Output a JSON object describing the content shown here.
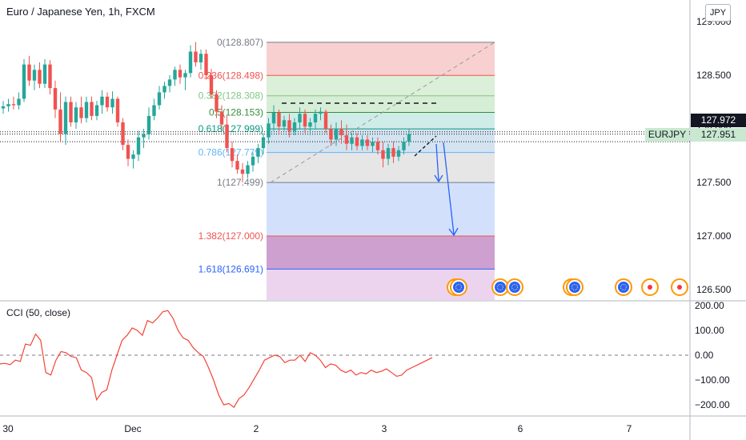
{
  "header": {
    "title": "Euro / Japanese Yen, 1h, FXCM"
  },
  "currency_badge": "JPY",
  "cci_title": "CCI (50, close)",
  "price_tags": {
    "last": "127.972",
    "symbol": "EURJPY",
    "symbol_price": "127.951"
  },
  "colors": {
    "up": "#26a69a",
    "down": "#ef5350",
    "cci": "#f44336",
    "fib_red": "#ef5350",
    "fib_green": "#388e3c",
    "fib_teal": "#089981",
    "fib_blue": "#2962ff",
    "arrow": "#2962ff"
  },
  "chart_data": [
    {
      "type": "candlestick",
      "title": "Euro / Japanese Yen, 1h, FXCM",
      "y_axis": {
        "ticks": [
          "129.000",
          "128.500",
          "128.000",
          "127.500",
          "127.000",
          "126.500"
        ],
        "ylim": [
          126.45,
          129.1
        ],
        "position": "right"
      },
      "x_axis": {
        "ticks": [
          "30",
          "Dec",
          "2",
          "3",
          "6",
          "7"
        ]
      },
      "fibonacci": [
        {
          "level": "0",
          "price": "128.807",
          "label": "0(128.807)",
          "color": "#787b86",
          "fill": "#f8d0d0"
        },
        {
          "level": "0.236",
          "price": "128.498",
          "label": "0.236(128.498)",
          "color": "#ef5350",
          "fill": "#dcefd9"
        },
        {
          "level": "0.382",
          "price": "128.308",
          "label": "0.382(128.308)",
          "color": "#81c784",
          "fill": "#d6eed5"
        },
        {
          "level": "0.5",
          "price": "128.153",
          "label": "0.5(128.153)",
          "color": "#388e3c",
          "fill": "#cfece9"
        },
        {
          "level": "0.618",
          "price": "127.999",
          "label": "0.618(127.999)",
          "color": "#089981",
          "fill": "#d3e3ef"
        },
        {
          "level": "0.786",
          "price": "127.779",
          "label": "0.786(127.779)",
          "color": "#64b5f6",
          "fill": "#e6e6e6"
        },
        {
          "level": "1",
          "price": "127.499",
          "label": "1(127.499)",
          "color": "#787b86",
          "fill": "#d2e0fc"
        },
        {
          "level": "1.382",
          "price": "127.000",
          "label": "1.382(127.000)",
          "color": "#ef5350",
          "fill": "#cea0d0"
        },
        {
          "level": "1.618",
          "price": "126.691",
          "label": "1.618(126.691)",
          "color": "#2962ff",
          "fill": "#ecd4ee"
        }
      ],
      "candles": [
        {
          "o": 128.19,
          "h": 128.26,
          "l": 128.14,
          "c": 128.21
        },
        {
          "o": 128.21,
          "h": 128.28,
          "l": 128.16,
          "c": 128.23
        },
        {
          "o": 128.23,
          "h": 128.3,
          "l": 128.18,
          "c": 128.22
        },
        {
          "o": 128.22,
          "h": 128.34,
          "l": 128.18,
          "c": 128.28
        },
        {
          "o": 128.28,
          "h": 128.65,
          "l": 128.25,
          "c": 128.6
        },
        {
          "o": 128.6,
          "h": 128.68,
          "l": 128.4,
          "c": 128.45
        },
        {
          "o": 128.45,
          "h": 128.6,
          "l": 128.36,
          "c": 128.55
        },
        {
          "o": 128.55,
          "h": 128.62,
          "l": 128.38,
          "c": 128.42
        },
        {
          "o": 128.42,
          "h": 128.65,
          "l": 128.38,
          "c": 128.6
        },
        {
          "o": 128.6,
          "h": 128.64,
          "l": 128.32,
          "c": 128.38
        },
        {
          "o": 128.38,
          "h": 128.45,
          "l": 128.1,
          "c": 128.18
        },
        {
          "o": 128.18,
          "h": 128.34,
          "l": 127.88,
          "c": 127.95
        },
        {
          "o": 127.95,
          "h": 128.3,
          "l": 127.85,
          "c": 128.25
        },
        {
          "o": 128.25,
          "h": 128.3,
          "l": 128.02,
          "c": 128.06
        },
        {
          "o": 128.06,
          "h": 128.25,
          "l": 128.0,
          "c": 128.2
        },
        {
          "o": 128.2,
          "h": 128.3,
          "l": 128.05,
          "c": 128.1
        },
        {
          "o": 128.1,
          "h": 128.3,
          "l": 128.06,
          "c": 128.25
        },
        {
          "o": 128.25,
          "h": 128.3,
          "l": 128.08,
          "c": 128.12
        },
        {
          "o": 128.12,
          "h": 128.26,
          "l": 128.08,
          "c": 128.22
        },
        {
          "o": 128.22,
          "h": 128.36,
          "l": 128.14,
          "c": 128.3
        },
        {
          "o": 128.3,
          "h": 128.34,
          "l": 128.16,
          "c": 128.2
        },
        {
          "o": 128.2,
          "h": 128.35,
          "l": 128.14,
          "c": 128.28
        },
        {
          "o": 128.28,
          "h": 128.3,
          "l": 128.02,
          "c": 128.06
        },
        {
          "o": 128.06,
          "h": 128.1,
          "l": 127.8,
          "c": 127.85
        },
        {
          "o": 127.85,
          "h": 127.9,
          "l": 127.65,
          "c": 127.72
        },
        {
          "o": 127.72,
          "h": 127.8,
          "l": 127.63,
          "c": 127.76
        },
        {
          "o": 127.76,
          "h": 127.98,
          "l": 127.7,
          "c": 127.92
        },
        {
          "o": 127.92,
          "h": 128.0,
          "l": 127.82,
          "c": 127.95
        },
        {
          "o": 127.95,
          "h": 128.2,
          "l": 127.9,
          "c": 128.12
        },
        {
          "o": 128.12,
          "h": 128.28,
          "l": 128.08,
          "c": 128.22
        },
        {
          "o": 128.22,
          "h": 128.4,
          "l": 128.18,
          "c": 128.34
        },
        {
          "o": 128.34,
          "h": 128.44,
          "l": 128.28,
          "c": 128.4
        },
        {
          "o": 128.4,
          "h": 128.5,
          "l": 128.34,
          "c": 128.46
        },
        {
          "o": 128.46,
          "h": 128.58,
          "l": 128.4,
          "c": 128.55
        },
        {
          "o": 128.55,
          "h": 128.6,
          "l": 128.42,
          "c": 128.48
        },
        {
          "o": 128.48,
          "h": 128.55,
          "l": 128.36,
          "c": 128.52
        },
        {
          "o": 128.52,
          "h": 128.78,
          "l": 128.48,
          "c": 128.72
        },
        {
          "o": 128.72,
          "h": 128.81,
          "l": 128.58,
          "c": 128.62
        },
        {
          "o": 128.62,
          "h": 128.74,
          "l": 128.55,
          "c": 128.7
        },
        {
          "o": 128.7,
          "h": 128.74,
          "l": 128.46,
          "c": 128.5
        },
        {
          "o": 128.5,
          "h": 128.56,
          "l": 128.28,
          "c": 128.32
        },
        {
          "o": 128.32,
          "h": 128.36,
          "l": 128.1,
          "c": 128.16
        },
        {
          "o": 128.16,
          "h": 128.22,
          "l": 127.98,
          "c": 128.04
        },
        {
          "o": 128.04,
          "h": 128.12,
          "l": 127.78,
          "c": 127.82
        },
        {
          "o": 127.82,
          "h": 127.88,
          "l": 127.64,
          "c": 127.7
        },
        {
          "o": 127.7,
          "h": 127.76,
          "l": 127.58,
          "c": 127.62
        },
        {
          "o": 127.62,
          "h": 127.68,
          "l": 127.5,
          "c": 127.58
        },
        {
          "o": 127.58,
          "h": 127.7,
          "l": 127.54,
          "c": 127.66
        },
        {
          "o": 127.66,
          "h": 127.78,
          "l": 127.6,
          "c": 127.74
        },
        {
          "o": 127.74,
          "h": 127.86,
          "l": 127.68,
          "c": 127.82
        },
        {
          "o": 127.82,
          "h": 127.96,
          "l": 127.76,
          "c": 127.92
        },
        {
          "o": 127.92,
          "h": 128.1,
          "l": 127.86,
          "c": 128.05
        },
        {
          "o": 128.05,
          "h": 128.22,
          "l": 127.98,
          "c": 128.15
        },
        {
          "o": 128.15,
          "h": 128.18,
          "l": 127.96,
          "c": 128.02
        },
        {
          "o": 128.02,
          "h": 128.12,
          "l": 127.98,
          "c": 128.08
        },
        {
          "o": 128.08,
          "h": 128.14,
          "l": 127.92,
          "c": 127.98
        },
        {
          "o": 127.98,
          "h": 128.1,
          "l": 127.94,
          "c": 128.06
        },
        {
          "o": 128.06,
          "h": 128.2,
          "l": 128.0,
          "c": 128.14
        },
        {
          "o": 128.14,
          "h": 128.18,
          "l": 127.96,
          "c": 128.02
        },
        {
          "o": 128.02,
          "h": 128.1,
          "l": 127.94,
          "c": 128.06
        },
        {
          "o": 128.06,
          "h": 128.18,
          "l": 128.0,
          "c": 128.14
        },
        {
          "o": 128.14,
          "h": 128.2,
          "l": 128.08,
          "c": 128.16
        },
        {
          "o": 128.16,
          "h": 128.18,
          "l": 127.96,
          "c": 128.0
        },
        {
          "o": 128.0,
          "h": 128.04,
          "l": 127.84,
          "c": 127.9
        },
        {
          "o": 127.9,
          "h": 128.06,
          "l": 127.84,
          "c": 128.0
        },
        {
          "o": 128.0,
          "h": 128.08,
          "l": 127.86,
          "c": 127.94
        },
        {
          "o": 127.94,
          "h": 128.04,
          "l": 127.8,
          "c": 127.86
        },
        {
          "o": 127.86,
          "h": 127.96,
          "l": 127.8,
          "c": 127.92
        },
        {
          "o": 127.92,
          "h": 127.96,
          "l": 127.8,
          "c": 127.84
        },
        {
          "o": 127.84,
          "h": 127.94,
          "l": 127.8,
          "c": 127.9
        },
        {
          "o": 127.9,
          "h": 127.94,
          "l": 127.8,
          "c": 127.84
        },
        {
          "o": 127.84,
          "h": 127.92,
          "l": 127.78,
          "c": 127.88
        },
        {
          "o": 127.88,
          "h": 127.92,
          "l": 127.76,
          "c": 127.8
        },
        {
          "o": 127.8,
          "h": 127.88,
          "l": 127.64,
          "c": 127.72
        },
        {
          "o": 127.72,
          "h": 127.86,
          "l": 127.66,
          "c": 127.82
        },
        {
          "o": 127.82,
          "h": 127.88,
          "l": 127.68,
          "c": 127.74
        },
        {
          "o": 127.74,
          "h": 127.84,
          "l": 127.7,
          "c": 127.8
        },
        {
          "o": 127.8,
          "h": 127.92,
          "l": 127.76,
          "c": 127.88
        },
        {
          "o": 127.88,
          "h": 128.0,
          "l": 127.84,
          "c": 127.95
        }
      ]
    },
    {
      "type": "line",
      "title": "CCI (50, close)",
      "y_axis": {
        "ticks": [
          "200.00",
          "100.00",
          "0.00",
          "−100.00",
          "−200.00"
        ],
        "ylim": [
          -230,
          210
        ]
      },
      "series": [
        {
          "values": [
            -35,
            -33,
            -38,
            -20,
            -25,
            45,
            40,
            85,
            60,
            -70,
            -80,
            -20,
            15,
            10,
            -5,
            -10,
            -60,
            -70,
            -90,
            -180,
            -150,
            -140,
            -60,
            0,
            60,
            80,
            110,
            100,
            80,
            140,
            130,
            150,
            175,
            180,
            150,
            100,
            70,
            60,
            30,
            10,
            -5,
            -50,
            -100,
            -160,
            -200,
            -195,
            -210,
            -175,
            -160,
            -130,
            -95,
            -60,
            -20,
            -10,
            0,
            -5,
            -30,
            -20,
            -20,
            0,
            -25,
            10,
            0,
            -20,
            -50,
            -35,
            -40,
            -60,
            -70,
            -60,
            -80,
            -70,
            -75,
            -60,
            -70,
            -65,
            -55,
            -70,
            -85,
            -80,
            -60,
            -50,
            -40,
            -30,
            -20,
            -10
          ]
        }
      ]
    }
  ],
  "annotations": {
    "events_count": 10
  }
}
